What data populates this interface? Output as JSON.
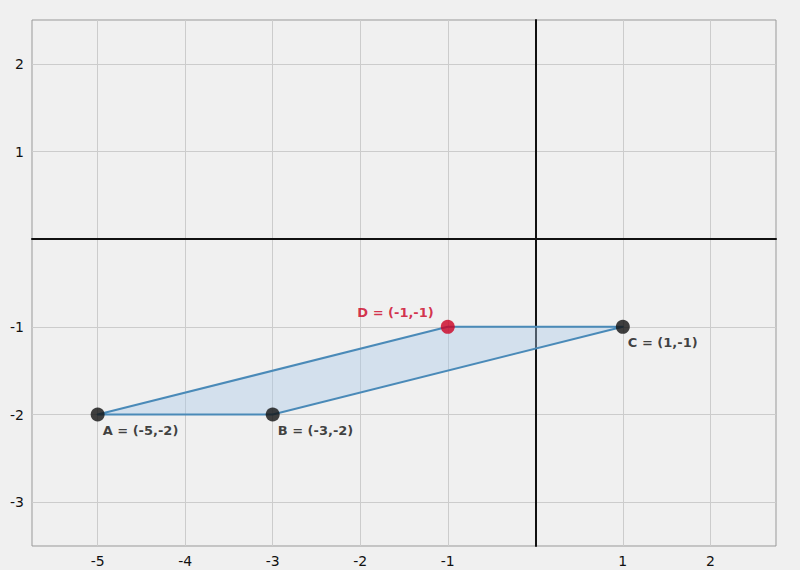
{
  "chart_data": {
    "type": "scatter",
    "background_color": "#f0f0f0",
    "polygon": {
      "x": [
        -5,
        -3,
        1,
        -1
      ],
      "y": [
        -2,
        -2,
        -1,
        -1
      ],
      "color": "#a8c8e8",
      "edge_color": "#4a8ab8"
    },
    "series": [
      {
        "type": "scatter",
        "color": "#111111",
        "x": [
          -5,
          -3,
          1
        ],
        "y": [
          -2,
          -2,
          -1
        ],
        "labels": [
          "A = (-5,-2)",
          "B = (-3,-2)",
          "C = (1,-1)"
        ]
      },
      {
        "type": "scatter",
        "color": "#cc0022",
        "x": [
          -1
        ],
        "y": [
          -1
        ],
        "labels": [
          "D = (-1,-1)"
        ]
      }
    ],
    "xlim": [
      -5.75,
      2.75
    ],
    "ylim": [
      -3.5,
      2.5
    ],
    "xticks": [
      -5,
      -4,
      -3,
      -2,
      -1,
      1,
      2
    ],
    "yticks": [
      -3,
      -2,
      -1,
      1,
      2
    ],
    "grid": true
  }
}
